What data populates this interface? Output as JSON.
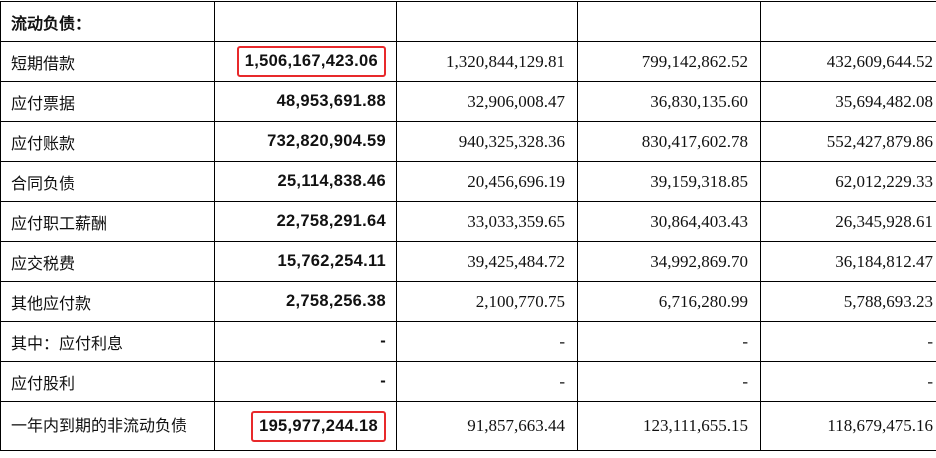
{
  "section_header": "流动负债：",
  "highlight_color": "#e8292b",
  "rows": [
    {
      "label": "短期借款",
      "values": [
        "1,506,167,423.06",
        "1,320,844,129.81",
        "799,142,862.52",
        "432,609,644.52"
      ],
      "highlighted": true
    },
    {
      "label": "应付票据",
      "values": [
        "48,953,691.88",
        "32,906,008.47",
        "36,830,135.60",
        "35,694,482.08"
      ]
    },
    {
      "label": "应付账款",
      "values": [
        "732,820,904.59",
        "940,325,328.36",
        "830,417,602.78",
        "552,427,879.86"
      ]
    },
    {
      "label": "合同负债",
      "values": [
        "25,114,838.46",
        "20,456,696.19",
        "39,159,318.85",
        "62,012,229.33"
      ]
    },
    {
      "label": "应付职工薪酬",
      "values": [
        "22,758,291.64",
        "33,033,359.65",
        "30,864,403.43",
        "26,345,928.61"
      ]
    },
    {
      "label": "应交税费",
      "values": [
        "15,762,254.11",
        "39,425,484.72",
        "34,992,869.70",
        "36,184,812.47"
      ]
    },
    {
      "label": "其他应付款",
      "values": [
        "2,758,256.38",
        "2,100,770.75",
        "6,716,280.99",
        "5,788,693.23"
      ]
    },
    {
      "label": "其中：应付利息",
      "values": [
        "-",
        "-",
        "-",
        "-"
      ]
    },
    {
      "label": "应付股利",
      "values": [
        "-",
        "-",
        "-",
        "-"
      ]
    },
    {
      "label": "一年内到期的非流动负债",
      "values": [
        "195,977,244.18",
        "91,857,663.44",
        "123,111,655.15",
        "118,679,475.16"
      ],
      "highlighted": true
    }
  ]
}
